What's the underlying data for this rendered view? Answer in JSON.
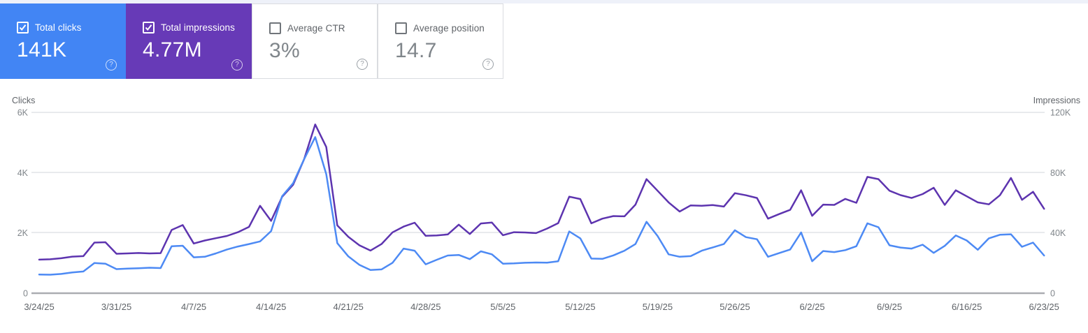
{
  "help_icon_glyph": "?",
  "cards": [
    {
      "label": "Total clicks",
      "value": "141K",
      "checked": true,
      "bg": "#4285f4",
      "text": "#ffffff"
    },
    {
      "label": "Total impressions",
      "value": "4.77M",
      "checked": true,
      "bg": "#673ab7",
      "text": "#ffffff"
    },
    {
      "label": "Average CTR",
      "value": "3%",
      "checked": false,
      "bg": "#ffffff",
      "text": "#80868b"
    },
    {
      "label": "Average position",
      "value": "14.7",
      "checked": false,
      "bg": "#ffffff",
      "text": "#80868b"
    }
  ],
  "chart_data": {
    "type": "line",
    "granularity": "daily",
    "x_tick_labels": [
      "3/24/25",
      "3/31/25",
      "4/7/25",
      "4/14/25",
      "4/21/25",
      "4/28/25",
      "5/5/25",
      "5/12/25",
      "5/19/25",
      "5/26/25",
      "6/2/25",
      "6/9/25",
      "6/16/25",
      "6/23/25"
    ],
    "left_axis": {
      "title": "Clicks",
      "ticks": [
        "0",
        "2K",
        "4K",
        "6K"
      ],
      "range": [
        0,
        6000
      ]
    },
    "right_axis": {
      "title": "Impressions",
      "ticks": [
        "0",
        "40K",
        "80K",
        "120K"
      ],
      "range": [
        0,
        120000
      ]
    },
    "grid": "horizontal",
    "series": [
      {
        "name": "Clicks",
        "axis": "left",
        "color": "#4d8af4",
        "values": [
          620,
          615,
          640,
          690,
          720,
          1000,
          980,
          800,
          815,
          830,
          845,
          835,
          1560,
          1575,
          1190,
          1210,
          1320,
          1450,
          1550,
          1630,
          1720,
          2060,
          3220,
          3650,
          4450,
          5180,
          3950,
          1660,
          1220,
          940,
          770,
          790,
          1010,
          1480,
          1410,
          960,
          1110,
          1250,
          1270,
          1130,
          1390,
          1290,
          980,
          990,
          1010,
          1020,
          1015,
          1060,
          2050,
          1820,
          1150,
          1140,
          1255,
          1410,
          1630,
          2370,
          1900,
          1290,
          1210,
          1230,
          1410,
          1520,
          1630,
          2090,
          1860,
          1790,
          1210,
          1330,
          1450,
          2015,
          1060,
          1400,
          1365,
          1430,
          1560,
          2320,
          2190,
          1590,
          1515,
          1480,
          1610,
          1340,
          1570,
          1915,
          1750,
          1440,
          1820,
          1940,
          1955,
          1540,
          1680,
          1250
        ]
      },
      {
        "name": "Impressions",
        "axis": "right",
        "color": "#5d34af",
        "values": [
          22300,
          22500,
          23200,
          24300,
          24600,
          33600,
          33800,
          26200,
          26400,
          26700,
          26400,
          26600,
          42000,
          45200,
          33000,
          35000,
          36500,
          38000,
          40500,
          44000,
          58000,
          48000,
          64000,
          72000,
          89000,
          112000,
          97000,
          45000,
          37400,
          31800,
          28300,
          32600,
          40400,
          44200,
          46800,
          38100,
          38300,
          39000,
          45500,
          39300,
          46300,
          46900,
          38500,
          40500,
          40300,
          39900,
          42900,
          46500,
          64100,
          62500,
          46400,
          49500,
          51200,
          51000,
          58800,
          75700,
          68000,
          60300,
          54200,
          58300,
          58000,
          58500,
          57500,
          66400,
          65000,
          63200,
          49500,
          52500,
          55300,
          68300,
          51400,
          58800,
          58600,
          62600,
          60000,
          77200,
          75700,
          68000,
          65100,
          63200,
          65800,
          70000,
          58600,
          68300,
          64300,
          60300,
          59000,
          65000,
          76500,
          62000,
          67300,
          56000
        ]
      }
    ]
  }
}
